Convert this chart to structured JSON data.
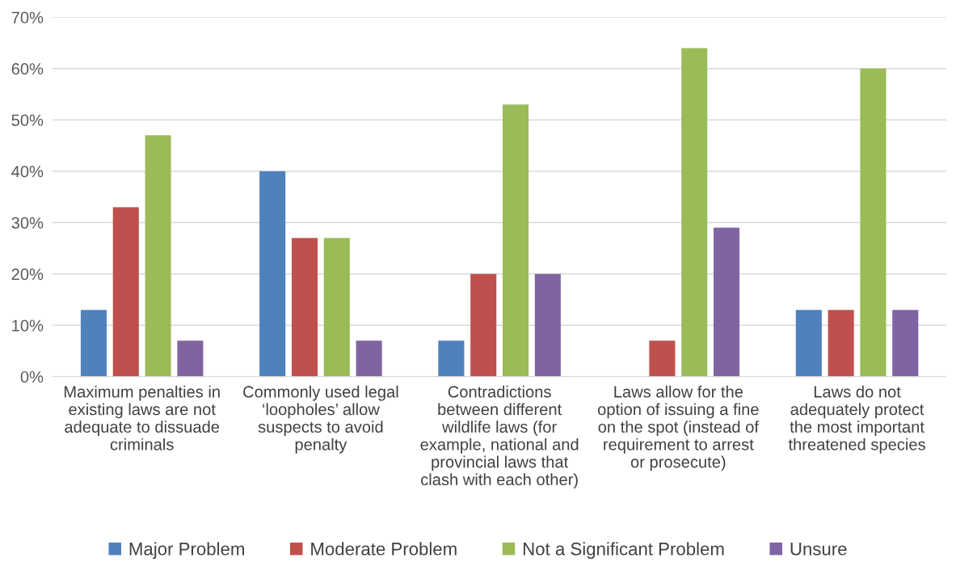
{
  "chart_data": {
    "type": "bar",
    "categories": [
      "Maximum penalties in\nexisting laws are not\nadequate to dissuade\ncriminals",
      "Commonly used legal\n‘loopholes’ allow\nsuspects to avoid\npenalty",
      "Contradictions\nbetween different\nwildlife laws (for\nexample, national and\nprovincial laws that\nclash with each other)",
      "Laws allow for the\noption of issuing a fine\non the spot (instead of\nrequirement to arrest\nor prosecute)",
      "Laws do not\nadequately protect\nthe most important\nthreatened species"
    ],
    "series": [
      {
        "name": "Major Problem",
        "color": "#4f81bd",
        "values": [
          13,
          40,
          7,
          0,
          13
        ]
      },
      {
        "name": "Moderate Problem",
        "color": "#c0504d",
        "values": [
          33,
          27,
          20,
          7,
          13
        ]
      },
      {
        "name": "Not a Significant Problem",
        "color": "#9bbb59",
        "values": [
          47,
          27,
          53,
          64,
          60
        ]
      },
      {
        "name": "Unsure",
        "color": "#8064a2",
        "values": [
          7,
          7,
          20,
          29,
          13
        ]
      }
    ],
    "ylim": [
      0,
      70
    ],
    "yticks": [
      {
        "value": 0,
        "label": "0%"
      },
      {
        "value": 10,
        "label": "10%"
      },
      {
        "value": 20,
        "label": "20%"
      },
      {
        "value": 30,
        "label": "30%"
      },
      {
        "value": 40,
        "label": "40%"
      },
      {
        "value": 50,
        "label": "50%"
      },
      {
        "value": 60,
        "label": "60%"
      },
      {
        "value": 70,
        "label": "70%"
      }
    ],
    "grid": "y",
    "legend": "bottom"
  }
}
